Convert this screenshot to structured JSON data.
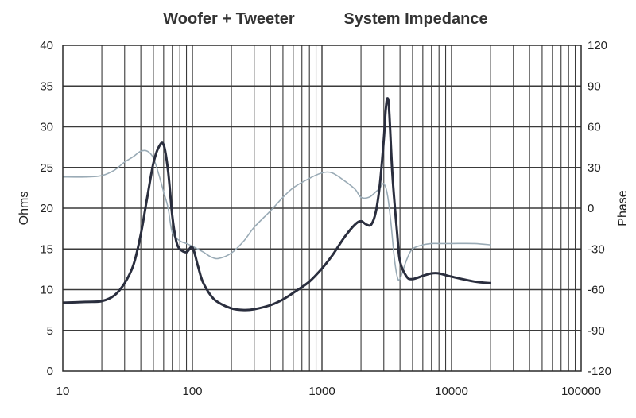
{
  "chart_data": {
    "type": "line",
    "title_left": "Woofer + Tweeter",
    "title_right": "System Impedance",
    "xlabel": "",
    "ylabel": "Ohms",
    "y2label": "Phase",
    "x_scale": "log",
    "xlim": [
      10,
      100000
    ],
    "ylim": [
      0,
      40
    ],
    "y2lim": [
      -120,
      120
    ],
    "x_ticks": [
      "10",
      "100",
      "1000",
      "10000",
      "100000"
    ],
    "x_tick_values": [
      10,
      100,
      1000,
      10000,
      100000
    ],
    "y_ticks": [
      "0",
      "5",
      "10",
      "15",
      "20",
      "25",
      "30",
      "35",
      "40"
    ],
    "y_tick_values": [
      0,
      5,
      10,
      15,
      20,
      25,
      30,
      35,
      40
    ],
    "y2_ticks": [
      "-120",
      "-90",
      "-60",
      "-30",
      "0",
      "30",
      "60",
      "90",
      "120"
    ],
    "y2_tick_values": [
      -120,
      -90,
      -60,
      -30,
      0,
      30,
      60,
      90,
      120
    ],
    "grid": true,
    "legend": "none",
    "colors": {
      "impedance": "#2a2e3e",
      "phase": "#9aabb6",
      "grid": "#3a3a3a"
    },
    "series": [
      {
        "axis": "left",
        "x": [
          10,
          15,
          20,
          25,
          30,
          35,
          40,
          45,
          50,
          55,
          60,
          65,
          70,
          75,
          80,
          90,
          100,
          110,
          120,
          140,
          160,
          200,
          250,
          300,
          400,
          500,
          600,
          800,
          1000,
          1200,
          1500,
          1800,
          2000,
          2200,
          2400,
          2600,
          2800,
          3000,
          3100,
          3200,
          3300,
          3500,
          3800,
          4000,
          4500,
          5000,
          6000,
          7000,
          8000,
          10000,
          15000,
          20000
        ],
        "y": [
          8.4,
          8.5,
          8.6,
          9.3,
          10.8,
          13.0,
          16.8,
          21.5,
          25.5,
          27.5,
          27.8,
          24.5,
          19.0,
          16.0,
          15.0,
          14.6,
          15.2,
          13.0,
          11.0,
          9.2,
          8.4,
          7.7,
          7.5,
          7.6,
          8.1,
          8.8,
          9.6,
          11.0,
          12.6,
          14.2,
          16.5,
          18.0,
          18.4,
          18.0,
          18.0,
          19.5,
          23.0,
          28.5,
          32.0,
          33.5,
          32.0,
          24.0,
          17.0,
          13.5,
          11.6,
          11.3,
          11.7,
          12.0,
          12.0,
          11.6,
          11.0,
          10.8
        ]
      },
      {
        "axis": "right",
        "x": [
          10,
          15,
          20,
          25,
          30,
          35,
          40,
          45,
          50,
          55,
          60,
          65,
          70,
          80,
          90,
          100,
          120,
          140,
          160,
          200,
          250,
          300,
          400,
          500,
          600,
          800,
          1000,
          1200,
          1500,
          1800,
          2000,
          2300,
          2600,
          2800,
          3000,
          3200,
          3400,
          3600,
          3800,
          4000,
          4500,
          5000,
          6000,
          7000,
          8000,
          10000,
          15000,
          20000
        ],
        "y": [
          23,
          23,
          24,
          28,
          34,
          38,
          42,
          42,
          37,
          25,
          12,
          0,
          -18,
          -24,
          -26,
          -28,
          -32,
          -36,
          -37,
          -33,
          -24,
          -14,
          -2,
          8,
          15,
          22,
          26,
          26,
          20,
          14,
          8,
          8,
          12,
          15,
          18,
          10,
          -10,
          -35,
          -50,
          -52,
          -38,
          -30,
          -27,
          -26,
          -26,
          -26,
          -26,
          -27
        ]
      }
    ]
  }
}
